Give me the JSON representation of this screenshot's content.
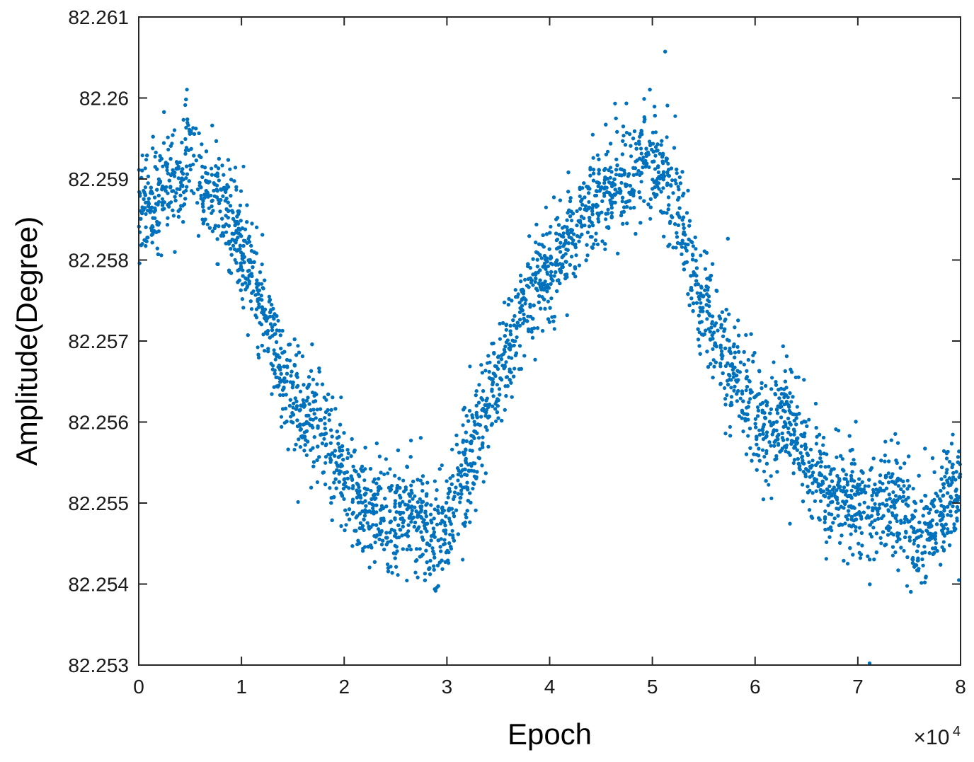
{
  "chart_data": {
    "type": "scatter",
    "title": "",
    "xlabel": "Epoch",
    "ylabel": "Amplitude(Degree)",
    "x_multiplier_label": "×10",
    "x_multiplier_exponent": "4",
    "xlim": [
      0,
      80000
    ],
    "ylim": [
      82.253,
      82.261
    ],
    "x_ticks": [
      0,
      10000,
      20000,
      30000,
      40000,
      50000,
      60000,
      70000,
      80000
    ],
    "x_tick_labels": [
      "0",
      "1",
      "2",
      "3",
      "4",
      "5",
      "6",
      "7",
      "8"
    ],
    "y_ticks": [
      82.253,
      82.254,
      82.255,
      82.256,
      82.257,
      82.258,
      82.259,
      82.26,
      82.261
    ],
    "y_tick_labels": [
      "82.253",
      "82.254",
      "82.255",
      "82.256",
      "82.257",
      "82.258",
      "82.259",
      "82.26",
      "82.261"
    ],
    "grid": false,
    "legend": "none",
    "marker_color": "#0072BD",
    "series": [
      {
        "x": [
          0,
          2000,
          4000,
          5000,
          6000,
          8000,
          10000,
          12000,
          14000,
          16000,
          18000,
          20000,
          22000,
          24000,
          26000,
          28000,
          29000,
          30000,
          32000,
          34000,
          36000,
          38000,
          40000,
          42000,
          44000,
          46000,
          48000,
          50000,
          51000,
          52000,
          53000,
          54000,
          56000,
          58000,
          60000,
          62000,
          63000,
          64000,
          66000,
          68000,
          70000,
          72000,
          74000,
          76000,
          78000,
          80000
        ],
        "y": [
          82.2586,
          82.2588,
          82.259,
          82.2594,
          82.2589,
          82.2588,
          82.2582,
          82.2574,
          82.2566,
          82.2562,
          82.256,
          82.2553,
          82.2549,
          82.2548,
          82.2549,
          82.2547,
          82.2545,
          82.2548,
          82.2555,
          82.2562,
          82.2569,
          82.2576,
          82.2579,
          82.2582,
          82.2586,
          82.2589,
          82.2591,
          82.2592,
          82.2591,
          82.2588,
          82.2584,
          82.2577,
          82.2571,
          82.2566,
          82.2561,
          82.2559,
          82.2562,
          82.2558,
          82.2553,
          82.2551,
          82.2549,
          82.2551,
          82.2549,
          82.2545,
          82.2548,
          82.2553
        ]
      }
    ]
  }
}
